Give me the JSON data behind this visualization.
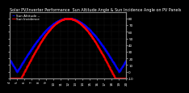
{
  "title": "Solar PV/Inverter Performance  Sun Altitude Angle & Sun Incidence Angle on PV Panels",
  "legend_blue": "Sun Altitude --",
  "legend_red": "Sun Incidence",
  "x_hours": [
    4,
    5,
    6,
    7,
    8,
    9,
    10,
    11,
    12,
    13,
    14,
    15,
    16,
    17,
    18,
    19,
    20
  ],
  "blue_color": "#0000ff",
  "red_color": "#ff0000",
  "ylim": [
    -10,
    90
  ],
  "yticks": [
    -10,
    0,
    10,
    20,
    30,
    40,
    50,
    60,
    70,
    80
  ],
  "ytick_labels_right": [
    "-10",
    "0",
    "10",
    "20",
    "30",
    "40",
    "50",
    "60",
    "70",
    "80"
  ],
  "bg_color": "#000000",
  "grid_color": "#404040",
  "title_fontsize": 3.5,
  "tick_fontsize": 3.0,
  "legend_fontsize": 3.0,
  "xlim": [
    4,
    20
  ]
}
